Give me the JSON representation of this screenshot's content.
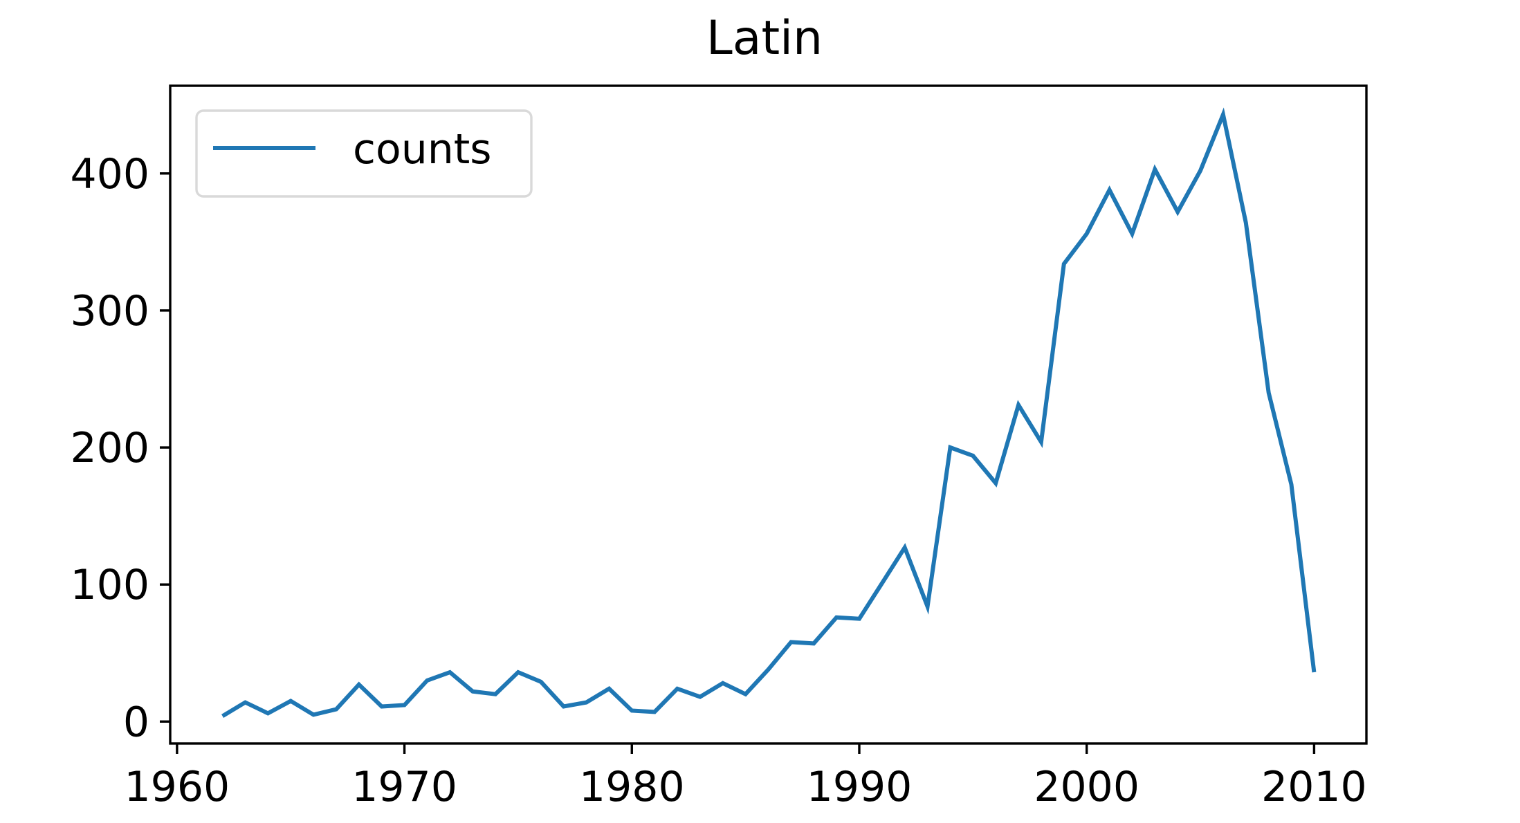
{
  "chart_data": {
    "type": "line",
    "title": "Latin",
    "xlabel": "",
    "ylabel": "",
    "xlim": [
      1959.7,
      2012.3
    ],
    "ylim": [
      -16,
      464
    ],
    "x_ticks": [
      1960,
      1970,
      1980,
      1990,
      2000,
      2010
    ],
    "y_ticks": [
      0,
      100,
      200,
      300,
      400
    ],
    "grid": false,
    "legend": {
      "position": "upper-left"
    },
    "colors": {
      "series": "#1f77b4",
      "axes": "#000000",
      "legend_border": "#d9d9d9"
    },
    "series": [
      {
        "name": "counts",
        "x": [
          1962,
          1963,
          1964,
          1965,
          1966,
          1967,
          1968,
          1969,
          1970,
          1971,
          1972,
          1973,
          1974,
          1975,
          1976,
          1977,
          1978,
          1979,
          1980,
          1981,
          1982,
          1983,
          1984,
          1985,
          1986,
          1987,
          1988,
          1989,
          1990,
          1991,
          1992,
          1993,
          1994,
          1995,
          1996,
          1997,
          1998,
          1999,
          2000,
          2001,
          2002,
          2003,
          2004,
          2005,
          2006,
          2007,
          2008,
          2009,
          2010
        ],
        "values": [
          4,
          14,
          6,
          15,
          5,
          9,
          27,
          11,
          12,
          30,
          36,
          22,
          20,
          36,
          29,
          11,
          14,
          24,
          8,
          7,
          24,
          18,
          28,
          20,
          38,
          58,
          57,
          76,
          75,
          101,
          127,
          84,
          200,
          194,
          174,
          231,
          204,
          334,
          356,
          388,
          356,
          403,
          372,
          402,
          443,
          364,
          240,
          173,
          36
        ]
      }
    ]
  }
}
